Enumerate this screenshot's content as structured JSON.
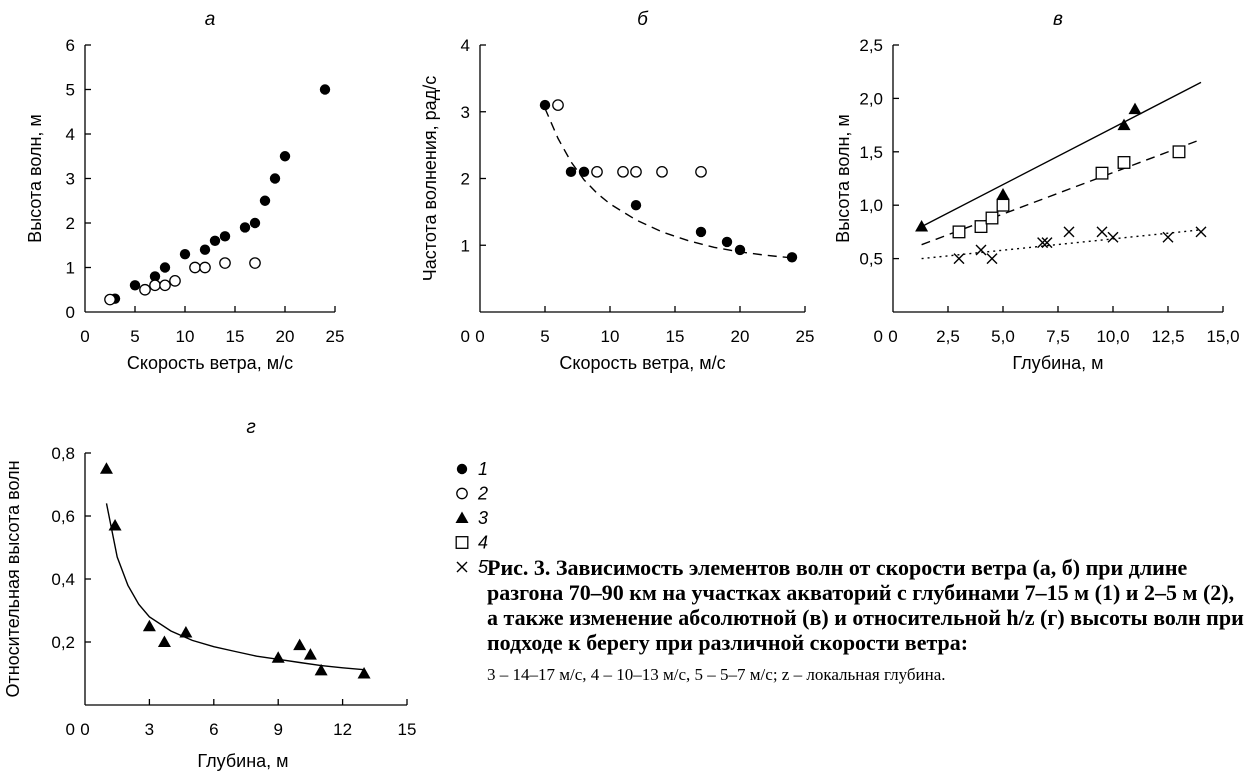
{
  "figure": {
    "caption_title": "Рис. 3. Зависимость элементов волн от скорости ветра (а, б) при длине разгона 70–90 км на участках акваторий с глубинами 7–15 м (1) и 2–5 м (2), а также изменение абсолютной (в) и относительной h/z (г) высоты волн при подходе к берегу при различной скорости ветра:",
    "caption_note": "3 – 14–17 м/с, 4 – 10–13 м/с, 5 – 5–7 м/с; z – локальная глубина."
  },
  "legend": [
    {
      "marker": "filled-circle",
      "label": "1"
    },
    {
      "marker": "open-circle",
      "label": "2"
    },
    {
      "marker": "filled-triangle",
      "label": "3"
    },
    {
      "marker": "open-square",
      "label": "4"
    },
    {
      "marker": "cross",
      "label": "5"
    }
  ],
  "chart_data": [
    {
      "type": "scatter",
      "panel_label": "а",
      "xlabel": "Скорость ветра, м/с",
      "ylabel": "Высота волн, м",
      "xlim": [
        0,
        25
      ],
      "ylim": [
        0,
        6
      ],
      "xticks": [
        0,
        5,
        10,
        15,
        20,
        25
      ],
      "yticks": [
        0,
        1,
        2,
        3,
        4,
        5,
        6
      ],
      "tick_labels_x": [
        "0",
        "5",
        "10",
        "15",
        "20",
        "25"
      ],
      "tick_labels_y": [
        "0",
        "1",
        "2",
        "3",
        "4",
        "5",
        "6"
      ],
      "series": [
        {
          "marker": "filled-circle",
          "x": [
            3,
            5,
            7,
            8,
            10,
            12,
            13,
            14,
            16,
            17,
            18,
            19,
            20,
            24
          ],
          "y": [
            0.3,
            0.6,
            0.8,
            1.0,
            1.3,
            1.4,
            1.6,
            1.7,
            1.9,
            2.0,
            2.5,
            3.0,
            3.5,
            5.0
          ]
        },
        {
          "marker": "open-circle",
          "x": [
            2.5,
            6,
            7,
            8,
            9,
            11,
            12,
            14,
            17
          ],
          "y": [
            0.28,
            0.5,
            0.6,
            0.6,
            0.7,
            1.0,
            1.0,
            1.1,
            1.1
          ]
        }
      ],
      "curves": []
    },
    {
      "type": "scatter",
      "panel_label": "б",
      "xlabel": "Скорость ветра, м/с",
      "ylabel": "Частота волнения, рад/с",
      "xlim": [
        0,
        25
      ],
      "ylim": [
        0,
        4
      ],
      "xticks": [
        0,
        5,
        10,
        15,
        20,
        25
      ],
      "yticks": [
        0,
        1,
        2,
        3,
        4
      ],
      "tick_labels_x": [
        "0",
        "5",
        "10",
        "15",
        "20",
        "25"
      ],
      "tick_labels_y": [
        "",
        "1",
        "2",
        "3",
        "4"
      ],
      "series": [
        {
          "marker": "filled-circle",
          "x": [
            5,
            7,
            8,
            12,
            17,
            19,
            20,
            24
          ],
          "y": [
            3.1,
            2.1,
            2.1,
            1.6,
            1.2,
            1.05,
            0.93,
            0.82
          ]
        },
        {
          "marker": "open-circle",
          "x": [
            6,
            9,
            11,
            12,
            14,
            17
          ],
          "y": [
            3.1,
            2.1,
            2.1,
            2.1,
            2.1,
            2.1
          ]
        }
      ],
      "curves": [
        {
          "style": "dashed",
          "x": [
            5,
            6,
            7,
            8,
            9,
            10,
            12,
            14,
            16,
            18,
            20,
            22,
            24
          ],
          "y": [
            3.05,
            2.6,
            2.25,
            1.98,
            1.78,
            1.62,
            1.38,
            1.2,
            1.07,
            0.97,
            0.9,
            0.85,
            0.81
          ]
        }
      ]
    },
    {
      "type": "scatter",
      "panel_label": "в",
      "xlabel": "Глубина, м",
      "ylabel": "Высота волн, м",
      "xlim": [
        0,
        15
      ],
      "ylim": [
        0,
        2.5
      ],
      "xticks": [
        0,
        2.5,
        5,
        7.5,
        10,
        12.5,
        15
      ],
      "yticks": [
        0,
        0.5,
        1.0,
        1.5,
        2.0,
        2.5
      ],
      "tick_labels_x": [
        "0",
        "2,5",
        "5,0",
        "7,5",
        "10,0",
        "12,5",
        "15,0"
      ],
      "tick_labels_y": [
        "",
        "0,5",
        "1,0",
        "1,5",
        "2,0",
        "2,5"
      ],
      "series": [
        {
          "marker": "filled-triangle",
          "x": [
            1.3,
            5.0,
            10.5,
            11.0
          ],
          "y": [
            0.8,
            1.1,
            1.75,
            1.9
          ]
        },
        {
          "marker": "open-square",
          "x": [
            3.0,
            4.0,
            4.5,
            5.0,
            9.5,
            10.5,
            13.0
          ],
          "y": [
            0.75,
            0.8,
            0.88,
            1.0,
            1.3,
            1.4,
            1.5
          ]
        },
        {
          "marker": "cross",
          "x": [
            3.0,
            4.0,
            4.5,
            6.8,
            7.0,
            8.0,
            9.5,
            10.0,
            12.5,
            14.0
          ],
          "y": [
            0.5,
            0.58,
            0.5,
            0.65,
            0.65,
            0.75,
            0.75,
            0.7,
            0.7,
            0.75
          ]
        }
      ],
      "curves": [
        {
          "style": "solid",
          "x": [
            1.3,
            14.0
          ],
          "y": [
            0.8,
            2.15
          ]
        },
        {
          "style": "dashed",
          "x": [
            1.3,
            13.8
          ],
          "y": [
            0.63,
            1.6
          ]
        },
        {
          "style": "dotted",
          "x": [
            1.3,
            14.0
          ],
          "y": [
            0.5,
            0.77
          ]
        }
      ]
    },
    {
      "type": "scatter",
      "panel_label": "г",
      "xlabel": "Глубина, м",
      "ylabel": "Относительная высота волн",
      "xlim": [
        0,
        15
      ],
      "ylim": [
        0,
        0.8
      ],
      "xticks": [
        0,
        3,
        6,
        9,
        12,
        15
      ],
      "yticks": [
        0,
        0.2,
        0.4,
        0.6,
        0.8
      ],
      "tick_labels_x": [
        "0",
        "3",
        "6",
        "9",
        "12",
        "15"
      ],
      "tick_labels_y": [
        "",
        "0,2",
        "0,4",
        "0,6",
        "0,8"
      ],
      "series": [
        {
          "marker": "filled-triangle",
          "x": [
            1.0,
            1.4,
            3.0,
            3.7,
            4.7,
            9.0,
            10.0,
            10.5,
            11.0,
            13.0
          ],
          "y": [
            0.75,
            0.57,
            0.25,
            0.2,
            0.23,
            0.15,
            0.19,
            0.16,
            0.11,
            0.1
          ]
        }
      ],
      "curves": [
        {
          "style": "solid",
          "x": [
            1.0,
            1.5,
            2.0,
            2.5,
            3.0,
            4.0,
            5.0,
            6.0,
            7.0,
            8.0,
            9.0,
            10.0,
            11.0,
            12.0,
            13.0
          ],
          "y": [
            0.64,
            0.47,
            0.38,
            0.32,
            0.28,
            0.235,
            0.205,
            0.185,
            0.17,
            0.155,
            0.145,
            0.135,
            0.125,
            0.118,
            0.112
          ]
        }
      ]
    }
  ]
}
